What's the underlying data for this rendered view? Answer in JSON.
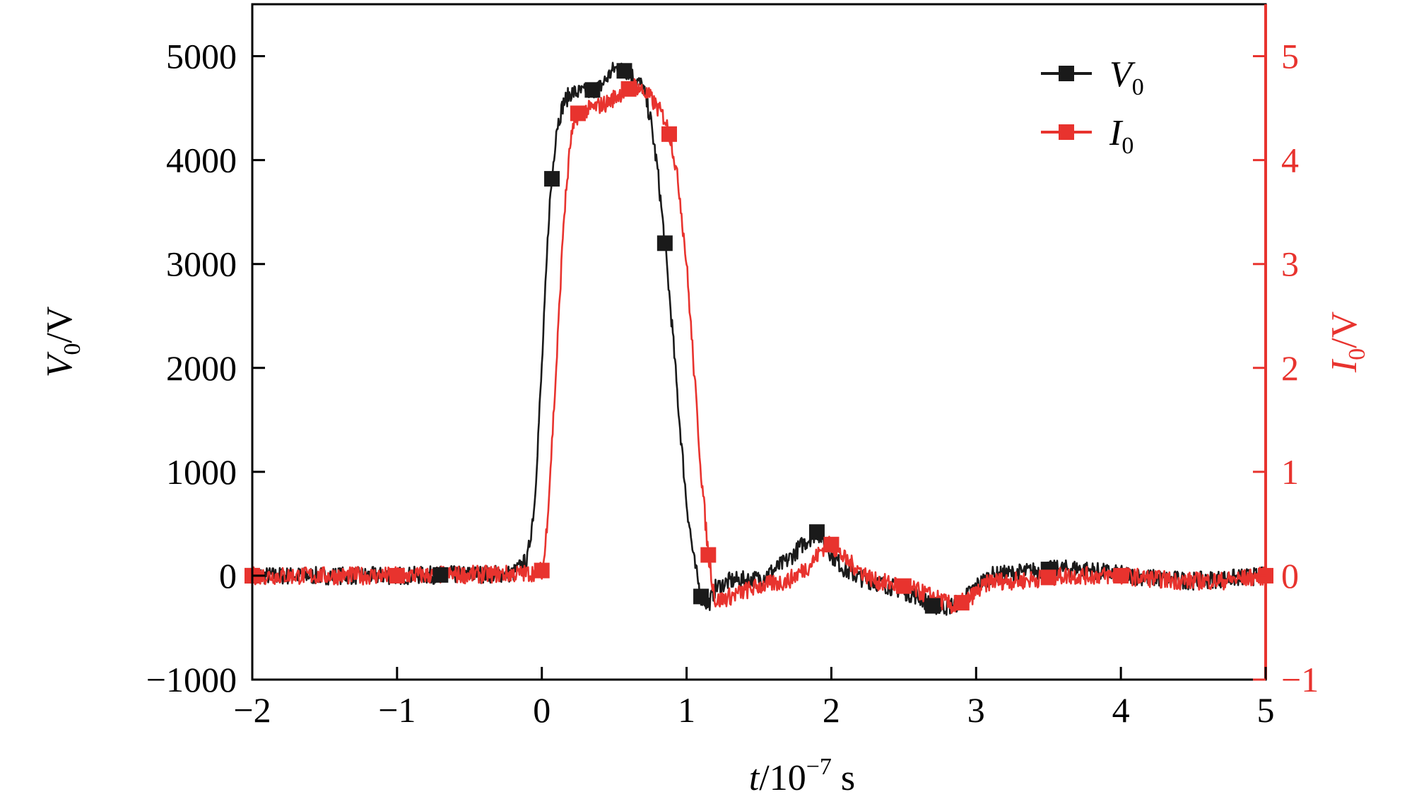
{
  "chart_data": {
    "type": "line",
    "xlabel": {
      "var": "t",
      "unit": "/10",
      "exp": "−7",
      "suffix": " s"
    },
    "ylabel_left": {
      "var": "V",
      "sub": "0",
      "unit": "/V"
    },
    "ylabel_right": {
      "var": "I",
      "sub": "0",
      "unit": "/V"
    },
    "xlim": [
      -2,
      5
    ],
    "ylim_left": [
      -1000,
      5500
    ],
    "ylim_right": [
      -1,
      5.5
    ],
    "x_ticks": [
      -2,
      -1,
      0,
      1,
      2,
      3,
      4,
      5
    ],
    "x_tick_labels": [
      "−2",
      "−1",
      "0",
      "1",
      "2",
      "3",
      "4",
      "5"
    ],
    "y_left_ticks": [
      -1000,
      0,
      1000,
      2000,
      3000,
      4000,
      5000
    ],
    "y_left_tick_labels": [
      "−1000",
      "0",
      "1000",
      "2000",
      "3000",
      "4000",
      "5000"
    ],
    "y_right_ticks": [
      -1,
      0,
      1,
      2,
      3,
      4,
      5
    ],
    "y_right_tick_labels": [
      "−1",
      "0",
      "1",
      "2",
      "3",
      "4",
      "5"
    ],
    "legend": {
      "position": "top-right"
    },
    "series": [
      {
        "name": "V",
        "name_sub": "0",
        "axis": "left",
        "color": "#1a1a1a",
        "points": [
          [
            -2.0,
            0
          ],
          [
            -1.0,
            0
          ],
          [
            -0.2,
            20
          ],
          [
            -0.1,
            150
          ],
          [
            -0.05,
            700
          ],
          [
            0.0,
            2000
          ],
          [
            0.05,
            3500
          ],
          [
            0.1,
            4300
          ],
          [
            0.15,
            4550
          ],
          [
            0.2,
            4650
          ],
          [
            0.3,
            4650
          ],
          [
            0.4,
            4700
          ],
          [
            0.5,
            4880
          ],
          [
            0.6,
            4850
          ],
          [
            0.7,
            4700
          ],
          [
            0.75,
            4400
          ],
          [
            0.8,
            3900
          ],
          [
            0.85,
            3200
          ],
          [
            0.9,
            2400
          ],
          [
            0.95,
            1500
          ],
          [
            1.0,
            700
          ],
          [
            1.05,
            150
          ],
          [
            1.1,
            -200
          ],
          [
            1.15,
            -280
          ],
          [
            1.2,
            -120
          ],
          [
            1.3,
            -50
          ],
          [
            1.5,
            -30
          ],
          [
            1.6,
            50
          ],
          [
            1.7,
            150
          ],
          [
            1.8,
            300
          ],
          [
            1.9,
            420
          ],
          [
            1.95,
            350
          ],
          [
            2.0,
            200
          ],
          [
            2.1,
            50
          ],
          [
            2.2,
            -20
          ],
          [
            2.4,
            -100
          ],
          [
            2.6,
            -200
          ],
          [
            2.7,
            -290
          ],
          [
            2.8,
            -300
          ],
          [
            2.9,
            -250
          ],
          [
            3.0,
            -100
          ],
          [
            3.1,
            0
          ],
          [
            3.3,
            30
          ],
          [
            3.5,
            60
          ],
          [
            3.7,
            70
          ],
          [
            3.9,
            30
          ],
          [
            4.2,
            -20
          ],
          [
            4.5,
            -50
          ],
          [
            4.8,
            -20
          ],
          [
            5.0,
            0
          ]
        ],
        "marker_x": [
          -2.0,
          -0.7,
          0.07,
          0.35,
          0.57,
          0.85,
          1.1,
          1.9,
          2.7,
          3.5
        ]
      },
      {
        "name": "I",
        "name_sub": "0",
        "axis": "right",
        "color": "#e8332e",
        "points": [
          [
            -2.0,
            0
          ],
          [
            -1.0,
            0
          ],
          [
            -0.1,
            0.02
          ],
          [
            0.0,
            0.05
          ],
          [
            0.02,
            0.2
          ],
          [
            0.05,
            0.8
          ],
          [
            0.1,
            2.0
          ],
          [
            0.15,
            3.4
          ],
          [
            0.2,
            4.2
          ],
          [
            0.25,
            4.45
          ],
          [
            0.35,
            4.5
          ],
          [
            0.45,
            4.55
          ],
          [
            0.55,
            4.65
          ],
          [
            0.65,
            4.72
          ],
          [
            0.75,
            4.6
          ],
          [
            0.85,
            4.4
          ],
          [
            0.9,
            4.15
          ],
          [
            0.95,
            3.7
          ],
          [
            1.0,
            3.0
          ],
          [
            1.05,
            2.0
          ],
          [
            1.1,
            1.0
          ],
          [
            1.15,
            0.2
          ],
          [
            1.2,
            -0.25
          ],
          [
            1.3,
            -0.2
          ],
          [
            1.5,
            -0.1
          ],
          [
            1.7,
            -0.05
          ],
          [
            1.85,
            0.1
          ],
          [
            1.95,
            0.28
          ],
          [
            2.0,
            0.3
          ],
          [
            2.1,
            0.15
          ],
          [
            2.3,
            -0.05
          ],
          [
            2.5,
            -0.1
          ],
          [
            2.7,
            -0.2
          ],
          [
            2.85,
            -0.3
          ],
          [
            2.95,
            -0.22
          ],
          [
            3.1,
            -0.05
          ],
          [
            3.3,
            -0.05
          ],
          [
            3.6,
            0.0
          ],
          [
            4.0,
            0.0
          ],
          [
            4.4,
            -0.05
          ],
          [
            4.7,
            -0.05
          ],
          [
            5.0,
            0.0
          ]
        ],
        "marker_x": [
          -2.0,
          -1.0,
          0.0,
          0.25,
          0.6,
          0.88,
          1.15,
          2.0,
          2.5,
          2.9,
          3.5,
          4.0,
          5.0
        ]
      }
    ]
  }
}
